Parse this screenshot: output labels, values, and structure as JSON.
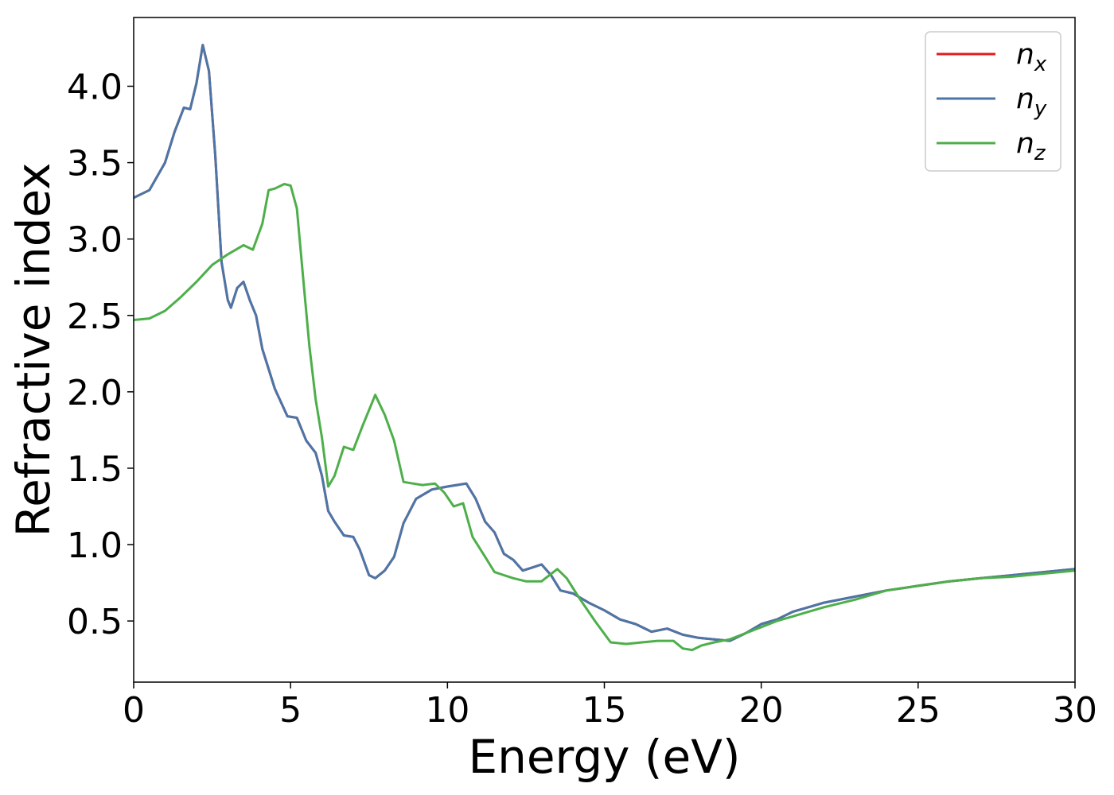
{
  "chart_data": {
    "type": "line",
    "xlabel": "Energy (eV)",
    "ylabel": "Refractive index",
    "xlim": [
      0,
      30
    ],
    "ylim": [
      0.1,
      4.45
    ],
    "xticks": [
      "0",
      "5",
      "10",
      "15",
      "20",
      "25",
      "30"
    ],
    "yticks": [
      "0.5",
      "1.0",
      "1.5",
      "2.0",
      "2.5",
      "3.0",
      "3.5",
      "4.0"
    ],
    "grid": false,
    "legend_position": "top-right",
    "series": [
      {
        "name": "n_x",
        "label_base": "n",
        "label_sub": "x",
        "color": "#e41a1c",
        "x": [
          0,
          0.5,
          1.0,
          1.3,
          1.6,
          1.8,
          2.0,
          2.2,
          2.4,
          2.6,
          2.8,
          3.0,
          3.1,
          3.3,
          3.5,
          3.7,
          3.9,
          4.1,
          4.5,
          4.9,
          5.2,
          5.5,
          5.8,
          6.0,
          6.2,
          6.4,
          6.7,
          7.0,
          7.2,
          7.5,
          7.7,
          8.0,
          8.3,
          8.6,
          9.0,
          9.5,
          10.0,
          10.3,
          10.6,
          10.9,
          11.2,
          11.5,
          11.8,
          12.1,
          12.4,
          12.7,
          13.0,
          13.3,
          13.6,
          14.0,
          14.5,
          15.0,
          15.5,
          16.0,
          16.5,
          17.0,
          17.5,
          18.0,
          18.5,
          19.0,
          19.5,
          20.0,
          20.5,
          21.0,
          22.0,
          23.0,
          24.0,
          25.0,
          26.0,
          27.0,
          28.0,
          29.0,
          30.0
        ],
        "y": [
          3.27,
          3.32,
          3.5,
          3.7,
          3.86,
          3.85,
          4.02,
          4.27,
          4.1,
          3.55,
          2.85,
          2.6,
          2.55,
          2.68,
          2.72,
          2.6,
          2.5,
          2.28,
          2.02,
          1.84,
          1.83,
          1.68,
          1.6,
          1.45,
          1.22,
          1.15,
          1.06,
          1.05,
          0.97,
          0.8,
          0.78,
          0.83,
          0.92,
          1.14,
          1.3,
          1.36,
          1.38,
          1.39,
          1.4,
          1.3,
          1.15,
          1.08,
          0.94,
          0.9,
          0.83,
          0.85,
          0.87,
          0.8,
          0.7,
          0.68,
          0.62,
          0.57,
          0.51,
          0.48,
          0.43,
          0.45,
          0.41,
          0.39,
          0.38,
          0.37,
          0.42,
          0.48,
          0.51,
          0.56,
          0.62,
          0.66,
          0.7,
          0.73,
          0.76,
          0.78,
          0.8,
          0.82,
          0.84
        ]
      },
      {
        "name": "n_y",
        "label_base": "n",
        "label_sub": "y",
        "color": "#4a76a8",
        "x": [
          0,
          0.5,
          1.0,
          1.3,
          1.6,
          1.8,
          2.0,
          2.2,
          2.4,
          2.6,
          2.8,
          3.0,
          3.1,
          3.3,
          3.5,
          3.7,
          3.9,
          4.1,
          4.5,
          4.9,
          5.2,
          5.5,
          5.8,
          6.0,
          6.2,
          6.4,
          6.7,
          7.0,
          7.2,
          7.5,
          7.7,
          8.0,
          8.3,
          8.6,
          9.0,
          9.5,
          10.0,
          10.3,
          10.6,
          10.9,
          11.2,
          11.5,
          11.8,
          12.1,
          12.4,
          12.7,
          13.0,
          13.3,
          13.6,
          14.0,
          14.5,
          15.0,
          15.5,
          16.0,
          16.5,
          17.0,
          17.5,
          18.0,
          18.5,
          19.0,
          19.5,
          20.0,
          20.5,
          21.0,
          22.0,
          23.0,
          24.0,
          25.0,
          26.0,
          27.0,
          28.0,
          29.0,
          30.0
        ],
        "y": [
          3.27,
          3.32,
          3.5,
          3.7,
          3.86,
          3.85,
          4.02,
          4.27,
          4.1,
          3.55,
          2.85,
          2.6,
          2.55,
          2.68,
          2.72,
          2.6,
          2.5,
          2.28,
          2.02,
          1.84,
          1.83,
          1.68,
          1.6,
          1.45,
          1.22,
          1.15,
          1.06,
          1.05,
          0.97,
          0.8,
          0.78,
          0.83,
          0.92,
          1.14,
          1.3,
          1.36,
          1.38,
          1.39,
          1.4,
          1.3,
          1.15,
          1.08,
          0.94,
          0.9,
          0.83,
          0.85,
          0.87,
          0.8,
          0.7,
          0.68,
          0.62,
          0.57,
          0.51,
          0.48,
          0.43,
          0.45,
          0.41,
          0.39,
          0.38,
          0.37,
          0.42,
          0.48,
          0.51,
          0.56,
          0.62,
          0.66,
          0.7,
          0.73,
          0.76,
          0.78,
          0.8,
          0.82,
          0.84
        ]
      },
      {
        "name": "n_z",
        "label_base": "n",
        "label_sub": "z",
        "color": "#4daf4a",
        "x": [
          0,
          0.5,
          1.0,
          1.5,
          2.0,
          2.5,
          3.0,
          3.5,
          3.8,
          4.1,
          4.3,
          4.5,
          4.8,
          5.0,
          5.2,
          5.4,
          5.6,
          5.8,
          6.0,
          6.2,
          6.4,
          6.7,
          7.0,
          7.3,
          7.7,
          8.0,
          8.3,
          8.6,
          8.9,
          9.2,
          9.6,
          9.9,
          10.2,
          10.5,
          10.8,
          11.2,
          11.5,
          11.8,
          12.1,
          12.5,
          13.0,
          13.5,
          13.8,
          14.2,
          14.7,
          15.2,
          15.7,
          16.2,
          16.7,
          17.2,
          17.5,
          17.8,
          18.1,
          18.5,
          19.0,
          19.5,
          20.0,
          20.5,
          21.0,
          21.5,
          22.0,
          23.0,
          24.0,
          25.0,
          26.0,
          27.0,
          28.0,
          29.0,
          30.0
        ],
        "y": [
          2.47,
          2.48,
          2.53,
          2.62,
          2.72,
          2.83,
          2.9,
          2.96,
          2.93,
          3.1,
          3.32,
          3.33,
          3.36,
          3.35,
          3.2,
          2.75,
          2.3,
          1.95,
          1.7,
          1.38,
          1.45,
          1.64,
          1.62,
          1.78,
          1.98,
          1.85,
          1.68,
          1.41,
          1.4,
          1.39,
          1.4,
          1.34,
          1.25,
          1.27,
          1.05,
          0.92,
          0.82,
          0.8,
          0.78,
          0.76,
          0.76,
          0.84,
          0.78,
          0.65,
          0.5,
          0.36,
          0.35,
          0.36,
          0.37,
          0.37,
          0.32,
          0.31,
          0.34,
          0.36,
          0.38,
          0.42,
          0.46,
          0.5,
          0.53,
          0.56,
          0.59,
          0.64,
          0.7,
          0.73,
          0.76,
          0.78,
          0.79,
          0.81,
          0.83
        ]
      }
    ]
  }
}
